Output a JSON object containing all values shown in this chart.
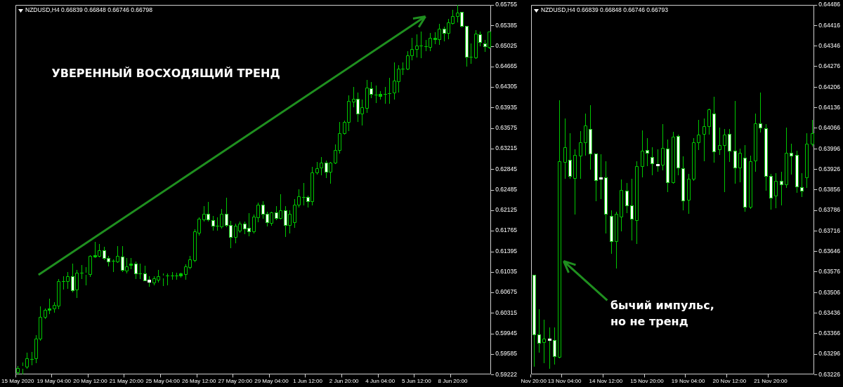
{
  "chart_data": [
    {
      "type": "candlestick",
      "title": "NZDUSD,H4 0.66839 0.66848 0.66746 0.66798",
      "annotations": [
        "УВЕРЕННЫЙ ВОСХОДЯЩИЙ ТРЕНД"
      ],
      "color": "#00c800",
      "categories": [
        "15 May 2020",
        null,
        null,
        null,
        null,
        null,
        null,
        null,
        "19 May 04:00",
        null,
        null,
        null,
        null,
        null,
        null,
        null,
        "20 May 12:00",
        null,
        null,
        null,
        null,
        null,
        null,
        null,
        "21 May 20:00",
        null,
        null,
        null,
        null,
        null,
        null,
        null,
        "25 May 04:00",
        null,
        null,
        null,
        null,
        null,
        null,
        null,
        "26 May 12:00",
        null,
        null,
        null,
        null,
        null,
        null,
        null,
        "27 May 20:00",
        null,
        null,
        null,
        null,
        null,
        null,
        null,
        "29 May 04:00",
        null,
        null,
        null,
        null,
        null,
        null,
        null,
        "1 Jun 12:00",
        null,
        null,
        null,
        null,
        null,
        null,
        null,
        "2 Jun 20:00",
        null,
        null,
        null,
        null,
        null,
        null,
        null,
        "4 Jun 04:00",
        null,
        null,
        null,
        null,
        null,
        null,
        null,
        "5 Jun 12:00",
        null,
        null,
        null,
        null,
        null,
        null,
        null,
        "8 Jun 20:00",
        null,
        null,
        null,
        null,
        null,
        null,
        null,
        null
      ],
      "ohlc": [
        [
          0.5926,
          0.5937,
          0.5923,
          0.5934
        ],
        [
          0.5934,
          0.5943,
          0.5924,
          0.5937
        ],
        [
          0.5936,
          0.596,
          0.5935,
          0.5951
        ],
        [
          0.595,
          0.5962,
          0.5941,
          0.595
        ],
        [
          0.5951,
          0.5992,
          0.5944,
          0.5986
        ],
        [
          0.5986,
          0.6042,
          0.5984,
          0.6024
        ],
        [
          0.6024,
          0.6038,
          0.6023,
          0.6037
        ],
        [
          0.6037,
          0.6056,
          0.6031,
          0.6039
        ],
        [
          0.6039,
          0.605,
          0.6033,
          0.6045
        ],
        [
          0.6044,
          0.6091,
          0.604,
          0.6088
        ],
        [
          0.6088,
          0.6095,
          0.6074,
          0.6088
        ],
        [
          0.6088,
          0.6103,
          0.6076,
          0.6096
        ],
        [
          0.6096,
          0.6118,
          0.607,
          0.6071
        ],
        [
          0.6072,
          0.6107,
          0.606,
          0.6102
        ],
        [
          0.6102,
          0.6115,
          0.6093,
          0.6102
        ],
        [
          0.61,
          0.6112,
          0.6082,
          0.6102
        ],
        [
          0.61,
          0.6133,
          0.6097,
          0.6132
        ],
        [
          0.6131,
          0.6156,
          0.613,
          0.6133
        ],
        [
          0.6132,
          0.6152,
          0.6131,
          0.6142
        ],
        [
          0.6142,
          0.6148,
          0.6127,
          0.6128
        ],
        [
          0.6128,
          0.6132,
          0.6115,
          0.6122
        ],
        [
          0.6123,
          0.6125,
          0.6105,
          0.6123
        ],
        [
          0.6122,
          0.6149,
          0.6121,
          0.6132
        ],
        [
          0.6131,
          0.6149,
          0.6105,
          0.6107
        ],
        [
          0.6106,
          0.6128,
          0.6103,
          0.6114
        ],
        [
          0.6116,
          0.6128,
          0.611,
          0.6118
        ],
        [
          0.6118,
          0.6122,
          0.6093,
          0.6101
        ],
        [
          0.6101,
          0.6118,
          0.6093,
          0.6101
        ],
        [
          0.6101,
          0.6114,
          0.6089,
          0.6089
        ],
        [
          0.609,
          0.6096,
          0.6079,
          0.6086
        ],
        [
          0.6085,
          0.6096,
          0.6082,
          0.6093
        ],
        [
          0.609,
          0.6107,
          0.6087,
          0.6096
        ],
        [
          0.6094,
          0.61,
          0.6081,
          0.6097
        ],
        [
          0.6097,
          0.61,
          0.6082,
          0.6097
        ],
        [
          0.6097,
          0.6103,
          0.6092,
          0.6098
        ],
        [
          0.6097,
          0.6102,
          0.6092,
          0.6098
        ],
        [
          0.6097,
          0.6102,
          0.6096,
          0.6101
        ],
        [
          0.61,
          0.6117,
          0.6092,
          0.6114
        ],
        [
          0.6112,
          0.6131,
          0.611,
          0.6126
        ],
        [
          0.6125,
          0.6178,
          0.6123,
          0.6175
        ],
        [
          0.6173,
          0.6199,
          0.617,
          0.6198
        ],
        [
          0.6196,
          0.622,
          0.6195,
          0.6207
        ],
        [
          0.6207,
          0.6227,
          0.6195,
          0.6196
        ],
        [
          0.6195,
          0.6202,
          0.6178,
          0.6185
        ],
        [
          0.6185,
          0.6199,
          0.6178,
          0.6185
        ],
        [
          0.6184,
          0.6215,
          0.6182,
          0.6207
        ],
        [
          0.6207,
          0.6234,
          0.6185,
          0.6186
        ],
        [
          0.6187,
          0.6194,
          0.6148,
          0.6166
        ],
        [
          0.6166,
          0.6189,
          0.6156,
          0.6185
        ],
        [
          0.6177,
          0.6192,
          0.6175,
          0.6189
        ],
        [
          0.6189,
          0.6192,
          0.6172,
          0.6181
        ],
        [
          0.6182,
          0.6207,
          0.6169,
          0.6176
        ],
        [
          0.6176,
          0.6205,
          0.6174,
          0.6201
        ],
        [
          0.62,
          0.6226,
          0.6194,
          0.6223
        ],
        [
          0.6223,
          0.6228,
          0.6199,
          0.6206
        ],
        [
          0.6207,
          0.621,
          0.6186,
          0.6192
        ],
        [
          0.619,
          0.621,
          0.6187,
          0.6209
        ],
        [
          0.6209,
          0.6219,
          0.6197,
          0.6199
        ],
        [
          0.6199,
          0.624,
          0.6198,
          0.6213
        ],
        [
          0.6212,
          0.6219,
          0.6168,
          0.6186
        ],
        [
          0.6186,
          0.6212,
          0.6173,
          0.6207
        ],
        [
          0.6192,
          0.6232,
          0.6184,
          0.6223
        ],
        [
          0.6223,
          0.6249,
          0.6219,
          0.6237
        ],
        [
          0.6236,
          0.626,
          0.6223,
          0.6237
        ],
        [
          0.6236,
          0.6238,
          0.622,
          0.6229
        ],
        [
          0.6229,
          0.6289,
          0.6223,
          0.628
        ],
        [
          0.6279,
          0.6298,
          0.6278,
          0.6287
        ],
        [
          0.6288,
          0.6306,
          0.6276,
          0.6297
        ],
        [
          0.6297,
          0.63,
          0.6271,
          0.6281
        ],
        [
          0.6281,
          0.6298,
          0.6262,
          0.6297
        ],
        [
          0.6297,
          0.6328,
          0.6296,
          0.6319
        ],
        [
          0.6319,
          0.6368,
          0.6315,
          0.6349
        ],
        [
          0.6349,
          0.637,
          0.6348,
          0.6369
        ],
        [
          0.6369,
          0.6415,
          0.6355,
          0.6406
        ],
        [
          0.6405,
          0.643,
          0.6397,
          0.641
        ],
        [
          0.641,
          0.642,
          0.637,
          0.6383
        ],
        [
          0.6383,
          0.6408,
          0.6364,
          0.6395
        ],
        [
          0.6394,
          0.6443,
          0.6387,
          0.6429
        ],
        [
          0.6428,
          0.6439,
          0.6413,
          0.6418
        ],
        [
          0.6417,
          0.6432,
          0.6404,
          0.6417
        ],
        [
          0.6415,
          0.6423,
          0.641,
          0.6418
        ],
        [
          0.6418,
          0.643,
          0.6403,
          0.6419
        ],
        [
          0.6419,
          0.6446,
          0.6403,
          0.642
        ],
        [
          0.6421,
          0.6474,
          0.641,
          0.6442
        ],
        [
          0.6441,
          0.6468,
          0.6422,
          0.6463
        ],
        [
          0.6463,
          0.6473,
          0.6453,
          0.6463
        ],
        [
          0.6463,
          0.6493,
          0.6462,
          0.6487
        ],
        [
          0.6486,
          0.6517,
          0.6479,
          0.6497
        ],
        [
          0.6497,
          0.6523,
          0.6484,
          0.6504
        ],
        [
          0.6503,
          0.6528,
          0.6483,
          0.6504
        ],
        [
          0.6502,
          0.6513,
          0.6496,
          0.6502
        ],
        [
          0.6501,
          0.6526,
          0.6496,
          0.6517
        ],
        [
          0.6515,
          0.6527,
          0.6508,
          0.6518
        ],
        [
          0.6515,
          0.6541,
          0.6507,
          0.6534
        ],
        [
          0.6534,
          0.6537,
          0.6513,
          0.6526
        ],
        [
          0.6526,
          0.655,
          0.6517,
          0.6545
        ],
        [
          0.6544,
          0.6566,
          0.6543,
          0.6556
        ],
        [
          0.6556,
          0.6575,
          0.6547,
          0.6562
        ],
        [
          0.6563,
          0.6563,
          0.6538,
          0.6538
        ],
        [
          0.6538,
          0.6538,
          0.6468,
          0.6484
        ],
        [
          0.6484,
          0.6507,
          0.6473,
          0.6484
        ],
        [
          0.6483,
          0.6531,
          0.6482,
          0.6525
        ],
        [
          0.6523,
          0.6528,
          0.6505,
          0.651
        ],
        [
          0.6508,
          0.6513,
          0.6495,
          0.6502
        ],
        [
          0.6501,
          0.6528,
          0.65,
          0.6528
        ]
      ],
      "colors": [
        "#000000",
        "#000000",
        "#000000",
        "#00c800",
        "#000000",
        "#000000",
        "#000000",
        "#00c800",
        "#000000",
        "#000000",
        "#00c800",
        "#000000",
        "#ffffff",
        "#000000",
        "#00c800",
        "#000000",
        "#000000",
        "#00c800",
        "#000000",
        "#ffffff",
        "#ffffff",
        "#00c800",
        "#000000",
        "#ffffff",
        "#000000",
        "#00c800",
        "#ffffff",
        "#00c800",
        "#ffffff",
        "#ffffff",
        "#000000",
        "#000000",
        "#000000",
        "#00c800",
        "#00c800",
        "#00c800",
        "#00c800",
        "#000000",
        "#000000",
        "#000000",
        "#000000",
        "#000000",
        "#ffffff",
        "#ffffff",
        "#00c800",
        "#000000",
        "#ffffff",
        "#ffffff",
        "#000000",
        "#000000",
        "#ffffff",
        "#ffffff",
        "#000000",
        "#000000",
        "#ffffff",
        "#ffffff",
        "#000000",
        "#ffffff",
        "#000000",
        "#ffffff",
        "#000000",
        "#000000",
        "#000000",
        "#00c800",
        "#ffffff",
        "#000000",
        "#000000",
        "#000000",
        "#ffffff",
        "#000000",
        "#000000",
        "#000000",
        "#000000",
        "#000000",
        "#000000",
        "#ffffff",
        "#000000",
        "#000000",
        "#ffffff",
        "#00c800",
        "#00c800",
        "#00c800",
        "#00c800",
        "#000000",
        "#000000",
        "#00c800",
        "#000000",
        "#000000",
        "#000000",
        "#00c800",
        "#00c800",
        "#000000",
        "#00c800",
        "#000000",
        "#ffffff",
        "#000000",
        "#000000",
        "#000000",
        "#ffffff",
        "#ffffff",
        "#00c800",
        "#000000",
        "#ffffff",
        "#ffffff",
        "#000000"
      ],
      "ylim": [
        0.59222,
        0.65755
      ],
      "yticks": [
        0.65755,
        0.65385,
        0.65025,
        0.64665,
        0.64305,
        0.63935,
        0.63575,
        0.63215,
        0.62845,
        0.62485,
        0.62125,
        0.61765,
        0.61395,
        0.61035,
        0.60675,
        0.60315,
        0.59945,
        0.59585,
        0.59222
      ]
    },
    {
      "type": "candlestick",
      "title": "NZDUSD,H4 0.66839 0.66848 0.66746 0.66793",
      "annotations": [
        "бычий импульс,\nно не тренд"
      ],
      "color": "#00c800",
      "categories": [
        "Nov 20:00",
        null,
        null,
        null,
        null,
        null,
        "13 Nov 04:00",
        null,
        null,
        null,
        null,
        null,
        null,
        null,
        "14 Nov 12:00",
        null,
        null,
        null,
        null,
        null,
        null,
        null,
        "15 Nov 20:00",
        null,
        null,
        null,
        null,
        null,
        null,
        null,
        "19 Nov 04:00",
        null,
        null,
        null,
        null,
        null,
        null,
        null,
        "20 Nov 12:00",
        null,
        null,
        null,
        null,
        null,
        null,
        null,
        "21 Nov 20:00",
        null,
        null,
        null,
        null,
        null,
        null,
        null,
        null
      ],
      "ohlc": [
        [
          0.63566,
          0.63566,
          0.63256,
          0.63363
        ],
        [
          0.63362,
          0.63449,
          0.63304,
          0.63335
        ],
        [
          0.63337,
          0.63413,
          0.63269,
          0.63348
        ],
        [
          0.6335,
          0.63387,
          0.63249,
          0.63343
        ],
        [
          0.63343,
          0.63385,
          0.63264,
          0.6329
        ],
        [
          0.63286,
          0.64161,
          0.63285,
          0.63953
        ],
        [
          0.63951,
          0.64098,
          0.63898,
          0.64
        ],
        [
          0.63958,
          0.64047,
          0.63897,
          0.63903
        ],
        [
          0.63897,
          0.63992,
          0.63776,
          0.63974
        ],
        [
          0.63972,
          0.64054,
          0.63897,
          0.64019
        ],
        [
          0.64019,
          0.64115,
          0.63976,
          0.64075
        ],
        [
          0.64064,
          0.64144,
          0.63929,
          0.6398
        ],
        [
          0.63979,
          0.63979,
          0.63821,
          0.6389
        ],
        [
          0.63898,
          0.63976,
          0.63827,
          0.63893
        ],
        [
          0.63899,
          0.63953,
          0.63711,
          0.63773
        ],
        [
          0.63768,
          0.63785,
          0.63642,
          0.63682
        ],
        [
          0.6368,
          0.63781,
          0.63592,
          0.63773
        ],
        [
          0.63765,
          0.63889,
          0.63718,
          0.63855
        ],
        [
          0.63853,
          0.63877,
          0.63781,
          0.63804
        ],
        [
          0.63804,
          0.63893,
          0.63686,
          0.63757
        ],
        [
          0.63752,
          0.63953,
          0.63676,
          0.63937
        ],
        [
          0.63937,
          0.64058,
          0.63903,
          0.6399
        ],
        [
          0.63991,
          0.64032,
          0.63941,
          0.63982
        ],
        [
          0.63968,
          0.64,
          0.6391,
          0.63946
        ],
        [
          0.63943,
          0.63992,
          0.63921,
          0.63939
        ],
        [
          0.63941,
          0.64078,
          0.63925,
          0.63998
        ],
        [
          0.63996,
          0.64027,
          0.63853,
          0.63882
        ],
        [
          0.63881,
          0.64052,
          0.6388,
          0.64036
        ],
        [
          0.64039,
          0.64044,
          0.63909,
          0.63933
        ],
        [
          0.63929,
          0.63968,
          0.63789,
          0.6382
        ],
        [
          0.63823,
          0.6391,
          0.63777,
          0.63894
        ],
        [
          0.63894,
          0.6403,
          0.63889,
          0.64018
        ],
        [
          0.64017,
          0.64092,
          0.63995,
          0.64044
        ],
        [
          0.64046,
          0.64099,
          0.63957,
          0.64072
        ],
        [
          0.64072,
          0.64131,
          0.64048,
          0.6413
        ],
        [
          0.64115,
          0.64172,
          0.63951,
          0.63988
        ],
        [
          0.63993,
          0.64067,
          0.63978,
          0.64008
        ],
        [
          0.64008,
          0.64061,
          0.63852,
          0.64044
        ],
        [
          0.64046,
          0.64061,
          0.63955,
          0.6399
        ],
        [
          0.63989,
          0.64157,
          0.6388,
          0.63932
        ],
        [
          0.63932,
          0.63996,
          0.63886,
          0.63982
        ],
        [
          0.63966,
          0.64006,
          0.63785,
          0.63797
        ],
        [
          0.63797,
          0.63972,
          0.63795,
          0.63953
        ],
        [
          0.63955,
          0.64115,
          0.63922,
          0.64082
        ],
        [
          0.64082,
          0.64187,
          0.64056,
          0.64069
        ],
        [
          0.64065,
          0.6408,
          0.63857,
          0.63902
        ],
        [
          0.63903,
          0.63909,
          0.63791,
          0.63828
        ],
        [
          0.63836,
          0.63911,
          0.63796,
          0.63886
        ],
        [
          0.63886,
          0.63916,
          0.63806,
          0.63875
        ],
        [
          0.63875,
          0.64067,
          0.63867,
          0.63983
        ],
        [
          0.63982,
          0.64012,
          0.63911,
          0.63972
        ],
        [
          0.63975,
          0.63989,
          0.63849,
          0.63867
        ],
        [
          0.63866,
          0.63912,
          0.63835,
          0.63854
        ],
        [
          0.63898,
          0.64048,
          0.63866,
          0.64012
        ],
        [
          0.64012,
          0.64092,
          0.64008,
          0.64048
        ]
      ],
      "colors": [
        "#ffffff",
        "#ffffff",
        "#000000",
        "#ffffff",
        "#ffffff",
        "#000000",
        "#000000",
        "#ffffff",
        "#000000",
        "#000000",
        "#000000",
        "#ffffff",
        "#ffffff",
        "#ffffff",
        "#ffffff",
        "#ffffff",
        "#000000",
        "#000000",
        "#ffffff",
        "#ffffff",
        "#000000",
        "#000000",
        "#ffffff",
        "#ffffff",
        "#ffffff",
        "#000000",
        "#ffffff",
        "#000000",
        "#ffffff",
        "#ffffff",
        "#000000",
        "#000000",
        "#000000",
        "#000000",
        "#000000",
        "#ffffff",
        "#000000",
        "#000000",
        "#ffffff",
        "#ffffff",
        "#000000",
        "#ffffff",
        "#000000",
        "#000000",
        "#ffffff",
        "#ffffff",
        "#ffffff",
        "#000000",
        "#ffffff",
        "#000000",
        "#ffffff",
        "#ffffff",
        "#ffffff",
        "#000000",
        "#000000"
      ],
      "ylim": [
        0.63226,
        0.64486
      ],
      "yticks": [
        0.64486,
        0.64416,
        0.64346,
        0.64276,
        0.64206,
        0.64136,
        0.64066,
        0.63996,
        0.63926,
        0.63856,
        0.63786,
        0.63716,
        0.63646,
        0.63576,
        0.63506,
        0.63436,
        0.63366,
        0.63296,
        0.63226
      ]
    }
  ]
}
